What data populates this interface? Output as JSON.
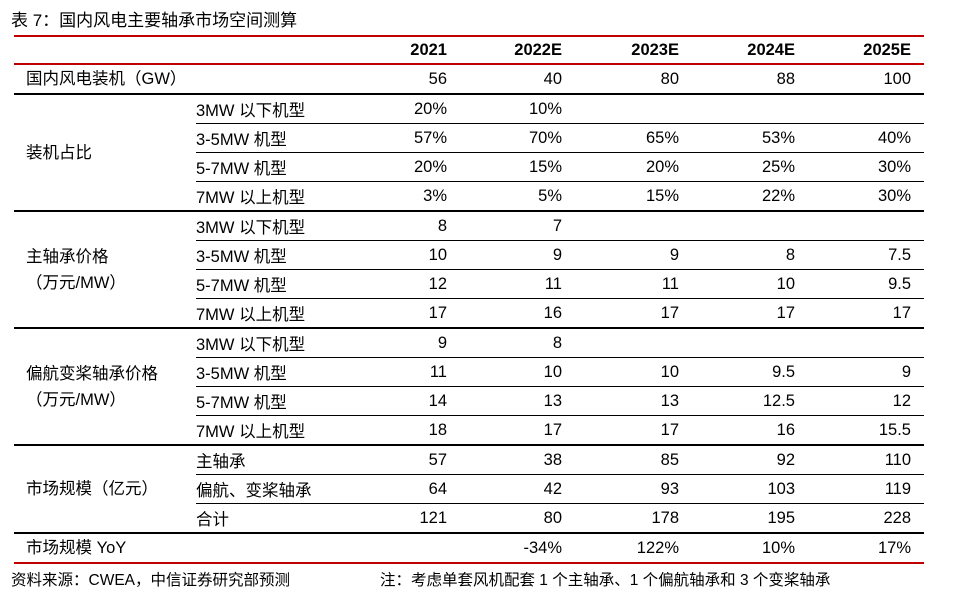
{
  "title": "表 7：国内风电主要轴承市场空间测算",
  "columns": [
    "2021",
    "2022E",
    "2023E",
    "2024E",
    "2025E"
  ],
  "installed": {
    "label": "国内风电装机（GW）",
    "values": [
      "56",
      "40",
      "80",
      "88",
      "100"
    ]
  },
  "groups": [
    {
      "label": [
        "装机占比"
      ],
      "rows": [
        {
          "sub": "3MW 以下机型",
          "values": [
            "20%",
            "10%",
            "",
            "",
            ""
          ]
        },
        {
          "sub": "3-5MW 机型",
          "values": [
            "57%",
            "70%",
            "65%",
            "53%",
            "40%"
          ]
        },
        {
          "sub": "5-7MW 机型",
          "values": [
            "20%",
            "15%",
            "20%",
            "25%",
            "30%"
          ]
        },
        {
          "sub": "7MW 以上机型",
          "values": [
            "3%",
            "5%",
            "15%",
            "22%",
            "30%"
          ]
        }
      ]
    },
    {
      "label": [
        "主轴承价格",
        "（万元/MW）"
      ],
      "rows": [
        {
          "sub": "3MW 以下机型",
          "values": [
            "8",
            "7",
            "",
            "",
            ""
          ]
        },
        {
          "sub": "3-5MW 机型",
          "values": [
            "10",
            "9",
            "9",
            "8",
            "7.5"
          ]
        },
        {
          "sub": "5-7MW 机型",
          "values": [
            "12",
            "11",
            "11",
            "10",
            "9.5"
          ]
        },
        {
          "sub": "7MW 以上机型",
          "values": [
            "17",
            "16",
            "17",
            "17",
            "17"
          ]
        }
      ]
    },
    {
      "label": [
        "偏航变桨轴承价格",
        "（万元/MW）"
      ],
      "rows": [
        {
          "sub": "3MW 以下机型",
          "values": [
            "9",
            "8",
            "",
            "",
            ""
          ]
        },
        {
          "sub": "3-5MW 机型",
          "values": [
            "11",
            "10",
            "10",
            "9.5",
            "9"
          ]
        },
        {
          "sub": "5-7MW 机型",
          "values": [
            "14",
            "13",
            "13",
            "12.5",
            "12"
          ]
        },
        {
          "sub": "7MW 以上机型",
          "values": [
            "18",
            "17",
            "17",
            "16",
            "15.5"
          ]
        }
      ]
    },
    {
      "label": [
        "市场规模（亿元）"
      ],
      "rows": [
        {
          "sub": "主轴承",
          "values": [
            "57",
            "38",
            "85",
            "92",
            "110"
          ]
        },
        {
          "sub": "偏航、变桨轴承",
          "values": [
            "64",
            "42",
            "93",
            "103",
            "119"
          ]
        },
        {
          "sub": "合计",
          "values": [
            "121",
            "80",
            "178",
            "195",
            "228"
          ]
        }
      ]
    }
  ],
  "yoy": {
    "label": "市场规模 YoY",
    "values": [
      "",
      "-34%",
      "122%",
      "10%",
      "17%"
    ]
  },
  "source": "资料来源：CWEA，中信证券研究部预测",
  "note": "注：考虑单套风机配套 1 个主轴承、1 个偏航轴承和 3 个变桨轴承"
}
